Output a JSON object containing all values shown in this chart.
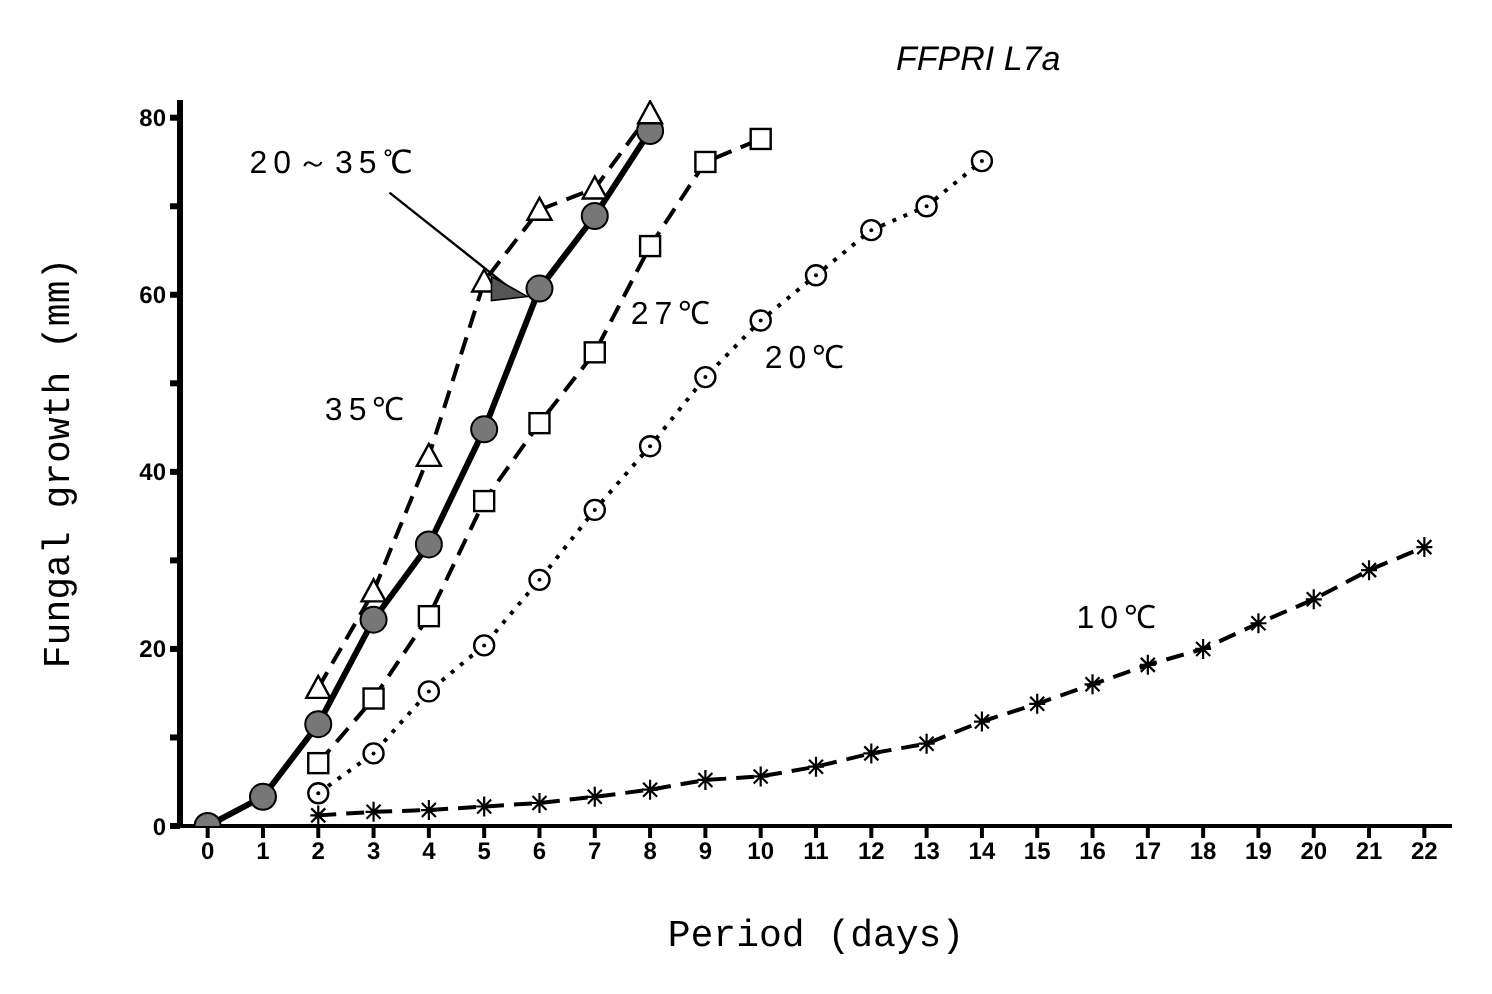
{
  "chart_data": {
    "type": "line",
    "title": "FFPRI L7a",
    "xlabel": "Period (days)",
    "ylabel": "Fungal growth (mm)",
    "xlim": [
      -0.5,
      22.5
    ],
    "xticks": [
      0,
      1,
      2,
      3,
      4,
      5,
      6,
      7,
      8,
      9,
      10,
      11,
      12,
      13,
      14,
      15,
      16,
      17,
      18,
      19,
      20,
      21,
      22
    ],
    "ylim": [
      0,
      82
    ],
    "yticks": [
      0,
      {
        "value": 10,
        "label": null
      },
      20,
      {
        "value": 30,
        "label": null
      },
      40,
      {
        "value": 50,
        "label": null
      },
      60,
      {
        "value": 70,
        "label": null
      },
      80
    ],
    "series": [
      {
        "name": "35℃",
        "color": "#000000",
        "marker": "triangle",
        "line_style": "dashed",
        "x": [
          2,
          3,
          4,
          5,
          6,
          7,
          8
        ],
        "values": [
          15.6,
          26.5,
          41.8,
          61.5,
          69.6,
          72,
          80.5
        ]
      },
      {
        "name": "20～35℃",
        "color": "#000000",
        "marker": "circle",
        "line_style": "solid",
        "x": [
          0,
          1,
          2,
          3,
          4,
          5,
          6,
          7,
          8
        ],
        "values": [
          0,
          3.3,
          11.5,
          23.3,
          31.8,
          44.8,
          60.7,
          68.9,
          78.5
        ]
      },
      {
        "name": "27℃",
        "color": "#000000",
        "marker": "square",
        "line_style": "dashed",
        "x": [
          2,
          3,
          4,
          5,
          6,
          7,
          8,
          9,
          10
        ],
        "values": [
          7.1,
          14.4,
          23.7,
          36.7,
          45.5,
          53.5,
          65.5,
          75,
          77.6
        ]
      },
      {
        "name": "20℃",
        "color": "#000000",
        "marker": "circle",
        "line_style": "dotted",
        "x": [
          2,
          3,
          4,
          5,
          6,
          7,
          8,
          9,
          10,
          11,
          12,
          13,
          14
        ],
        "values": [
          3.7,
          8.2,
          15.2,
          20.4,
          27.8,
          35.7,
          42.9,
          50.7,
          57.1,
          62.2,
          67.3,
          70,
          75.1
        ]
      },
      {
        "name": "10℃",
        "color": "#000000",
        "marker": "cross",
        "line_style": "dashed",
        "x": [
          2,
          3,
          4,
          5,
          6,
          7,
          8,
          9,
          10,
          11,
          12,
          13,
          14,
          15,
          16,
          17,
          18,
          19,
          20,
          21,
          22
        ],
        "values": [
          1.2,
          1.6,
          1.8,
          2.2,
          2.6,
          3.3,
          4.1,
          5.2,
          5.6,
          6.7,
          8.2,
          9.3,
          11.8,
          13.8,
          16,
          18.2,
          20,
          22.9,
          25.6,
          28.9,
          31.5
        ]
      }
    ]
  }
}
